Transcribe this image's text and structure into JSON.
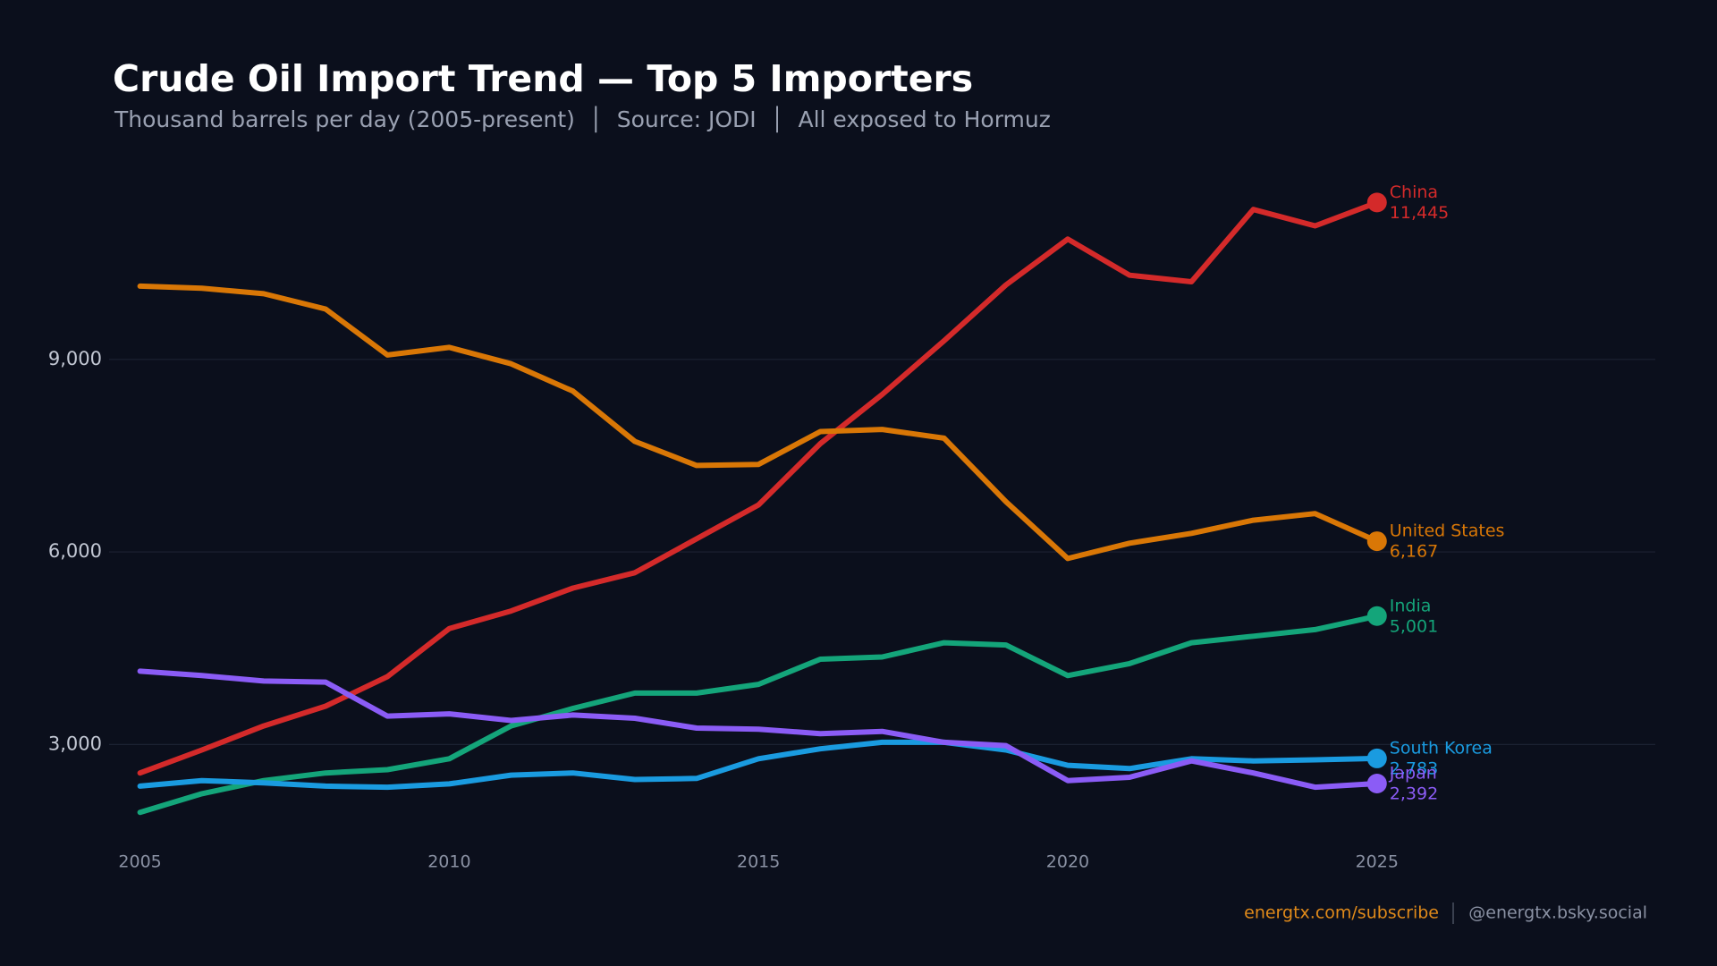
{
  "chart_data": {
    "type": "line",
    "title": "Crude Oil Import Trend — Top 5 Importers",
    "subtitle": "Thousand barrels per day (2005-present)  │  Source: JODI  │  All exposed to Hormuz",
    "footer_link": "energtx.com/subscribe",
    "footer_handle": "@energtx.bsky.social",
    "x": [
      2005,
      2006,
      2007,
      2008,
      2009,
      2010,
      2011,
      2012,
      2013,
      2014,
      2015,
      2016,
      2017,
      2018,
      2019,
      2020,
      2021,
      2022,
      2023,
      2024,
      2025
    ],
    "xlim": [
      2004.5,
      2029.5
    ],
    "xticks": [
      2005,
      2010,
      2015,
      2020,
      2025
    ],
    "ylim": [
      1500,
      12300
    ],
    "yticks": [
      {
        "value": 3000,
        "label": "3,000"
      },
      {
        "value": 6000,
        "label": "6,000"
      },
      {
        "value": 9000,
        "label": "9,000"
      }
    ],
    "grid": true,
    "series": [
      {
        "name": "China",
        "color": "#d42a2a",
        "values": [
          2557,
          2915,
          3290,
          3597,
          4057,
          4807,
          5080,
          5437,
          5676,
          6204,
          6733,
          7687,
          8454,
          9290,
          10159,
          10875,
          10312,
          10210,
          11335,
          11080,
          11445
        ],
        "value_labels": [
          null,
          null,
          null,
          null,
          null,
          null,
          null,
          null,
          null,
          null,
          null,
          null,
          null,
          null,
          null,
          null,
          null,
          null,
          null,
          null,
          "11,445"
        ]
      },
      {
        "name": "United States",
        "color": "#d97706",
        "values": [
          10142,
          10108,
          10023,
          9784,
          9068,
          9187,
          8932,
          8506,
          7722,
          7347,
          7364,
          7875,
          7909,
          7773,
          6784,
          5898,
          6136,
          6290,
          6494,
          6597,
          6167
        ],
        "value_labels": [
          null,
          null,
          null,
          null,
          null,
          null,
          null,
          null,
          null,
          null,
          null,
          null,
          null,
          null,
          null,
          null,
          null,
          null,
          null,
          null,
          "6,167"
        ]
      },
      {
        "name": "India",
        "color": "#14a57a",
        "values": [
          1943,
          2233,
          2438,
          2557,
          2608,
          2778,
          3290,
          3562,
          3801,
          3801,
          3937,
          4329,
          4364,
          4585,
          4551,
          4074,
          4261,
          4585,
          4687,
          4790,
          5001
        ],
        "value_labels": [
          null,
          null,
          null,
          null,
          null,
          null,
          null,
          null,
          null,
          null,
          null,
          null,
          null,
          null,
          null,
          null,
          null,
          null,
          null,
          null,
          "5,001"
        ]
      },
      {
        "name": "South Korea",
        "color": "#1a9be0",
        "values": [
          2352,
          2438,
          2403,
          2352,
          2335,
          2386,
          2523,
          2557,
          2455,
          2472,
          2778,
          2932,
          3034,
          3034,
          2915,
          2676,
          2625,
          2778,
          2744,
          2761,
          2783
        ],
        "value_labels": [
          null,
          null,
          null,
          null,
          null,
          null,
          null,
          null,
          null,
          null,
          null,
          null,
          null,
          null,
          null,
          null,
          null,
          null,
          null,
          null,
          "2,783"
        ]
      },
      {
        "name": "Japan",
        "color": "#8b5cf6",
        "values": [
          4142,
          4074,
          3989,
          3972,
          3443,
          3477,
          3375,
          3460,
          3409,
          3256,
          3239,
          3170,
          3205,
          3034,
          2983,
          2438,
          2489,
          2744,
          2557,
          2335,
          2392
        ],
        "value_labels": [
          null,
          null,
          null,
          null,
          null,
          null,
          null,
          null,
          null,
          null,
          null,
          null,
          null,
          null,
          null,
          null,
          null,
          null,
          null,
          null,
          "2,392"
        ]
      }
    ]
  }
}
